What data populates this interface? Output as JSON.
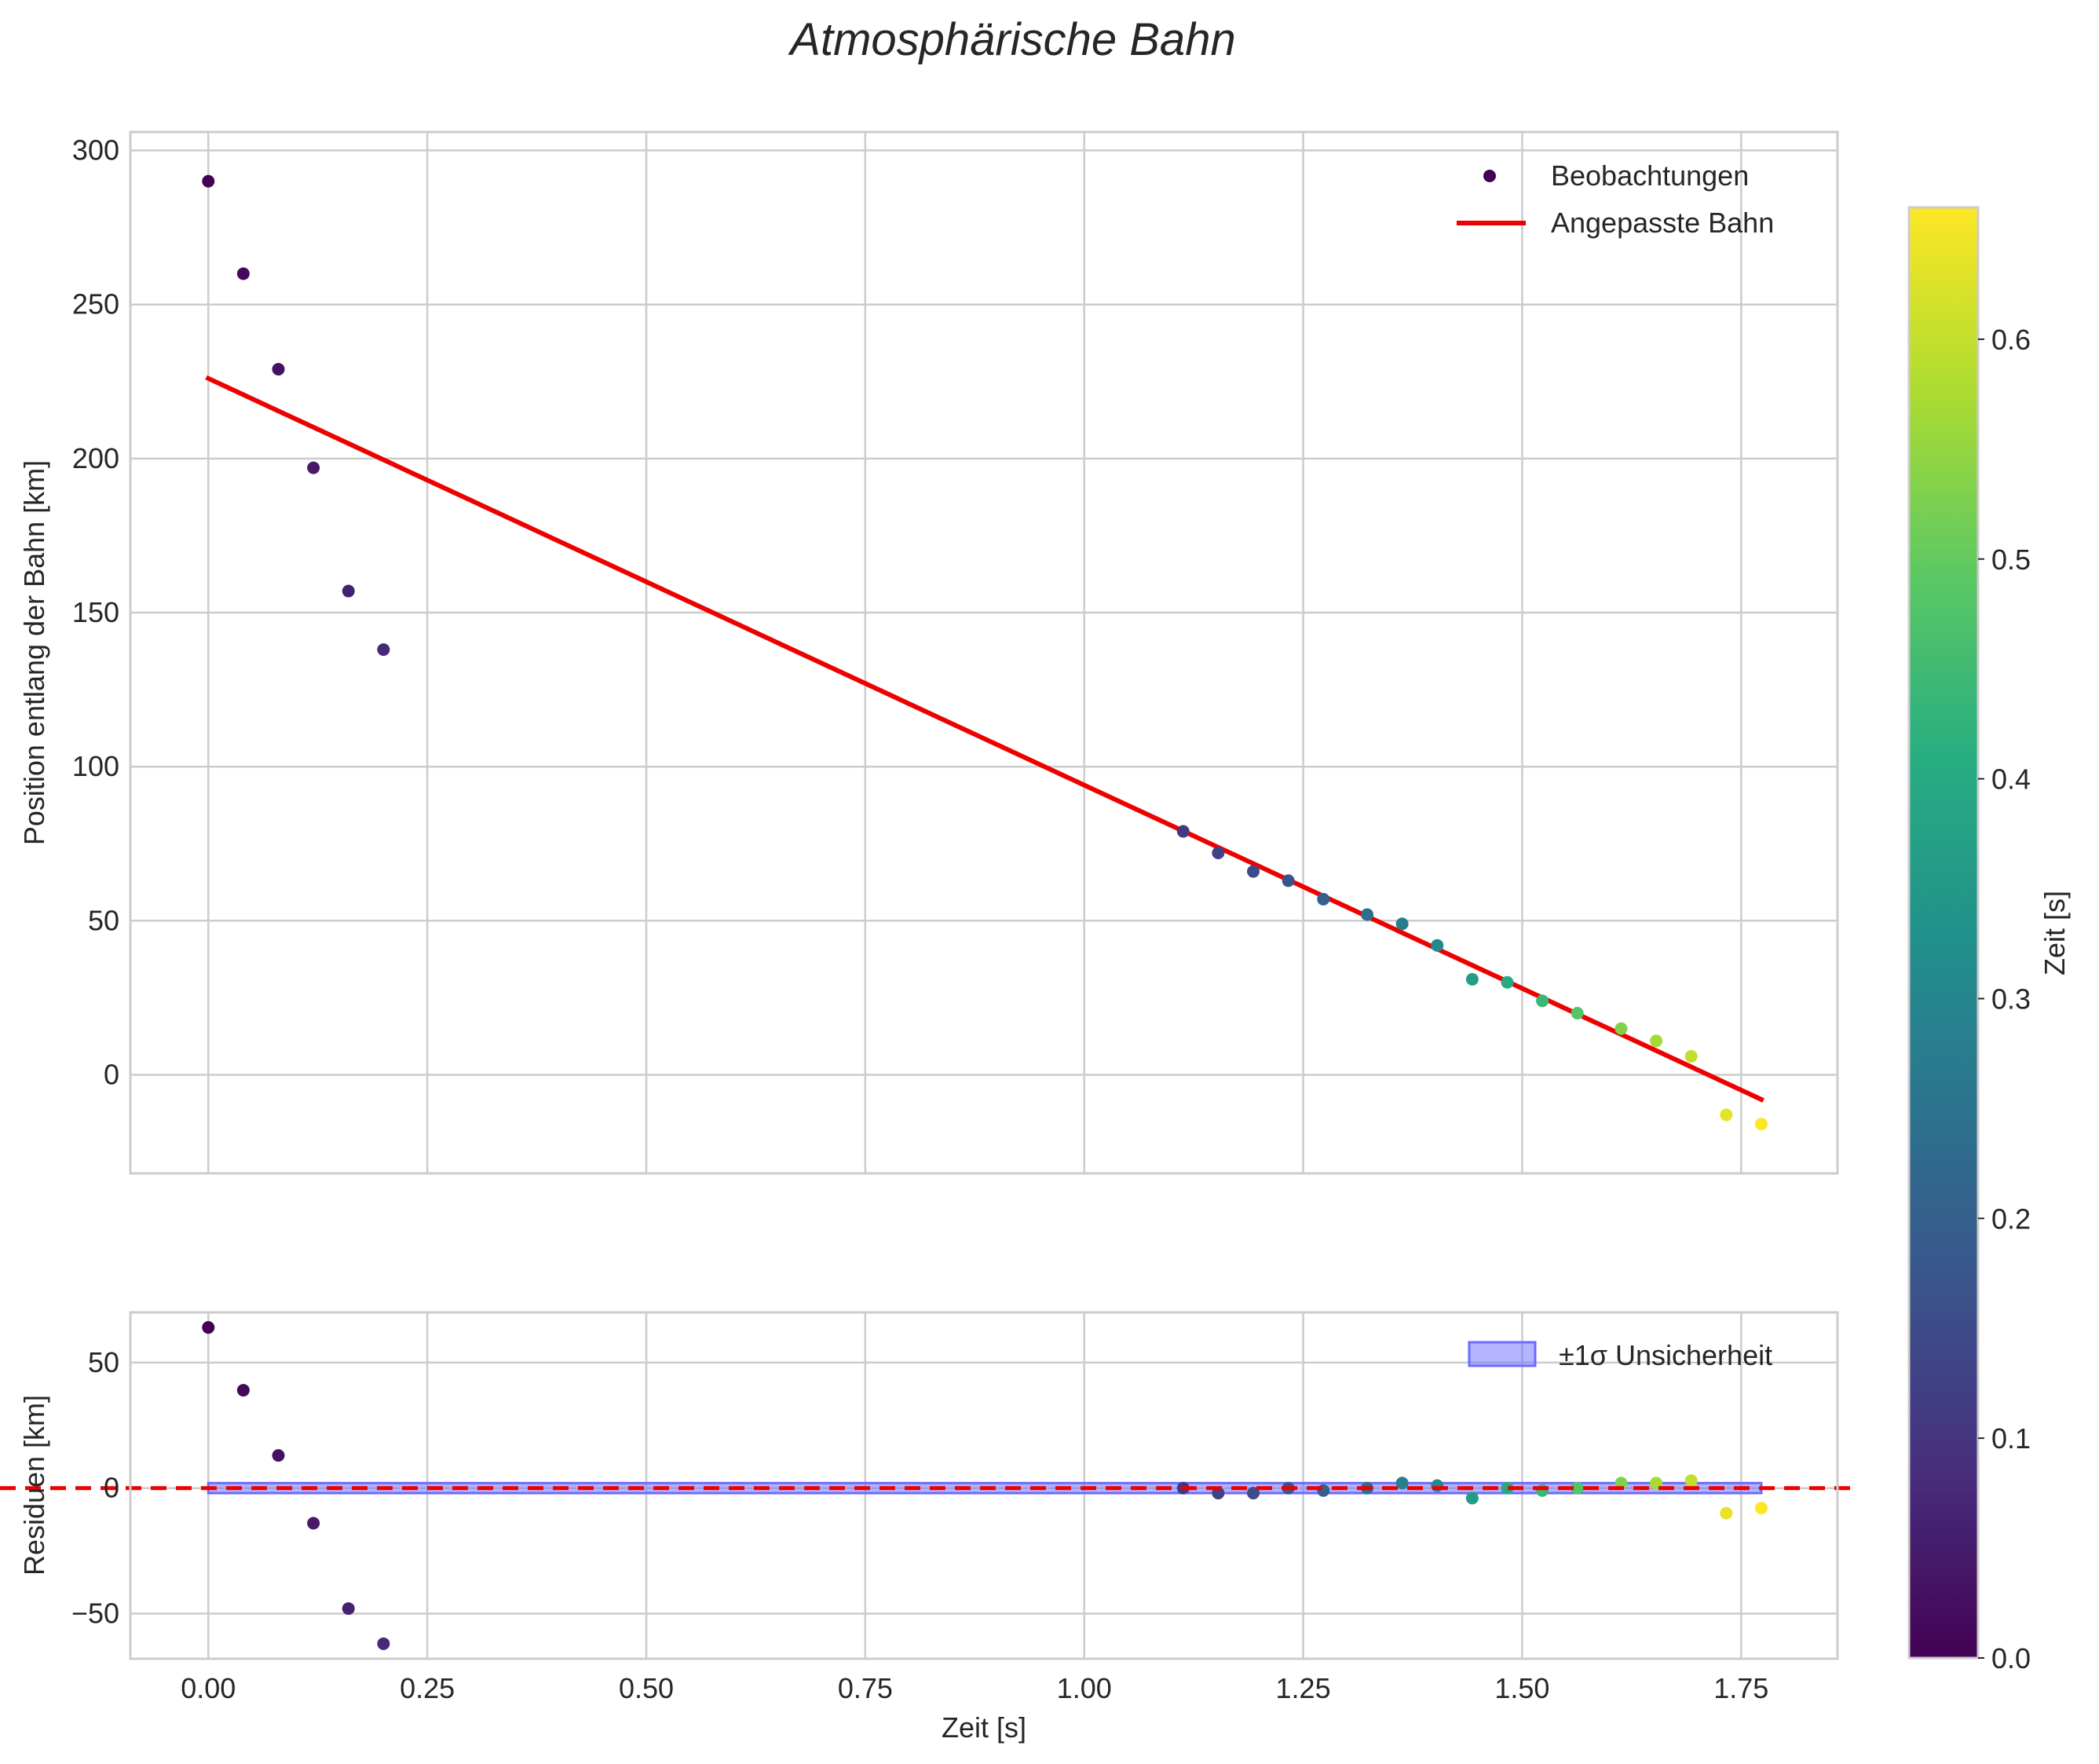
{
  "title": "Atmosphärische Bahn",
  "chart_data": [
    {
      "type": "scatter",
      "panel": "main",
      "xlabel": "",
      "ylabel": "Position entlang der Bahn [km]",
      "xlim": [
        -0.089,
        1.86
      ],
      "ylim": [
        -32,
        306
      ],
      "xticks": [
        0.0,
        0.25,
        0.5,
        0.75,
        1.0,
        1.25,
        1.5,
        1.75
      ],
      "yticks": [
        0,
        50,
        100,
        150,
        200,
        250,
        300
      ],
      "ytick_labels": [
        "0",
        "50",
        "100",
        "150",
        "200",
        "250",
        "300"
      ],
      "grid": true,
      "legend_position": "top-right",
      "series": [
        {
          "name": "Beobachtungen",
          "kind": "scatter",
          "x": [
            0.0,
            0.04,
            0.08,
            0.12,
            0.16,
            0.2,
            1.113,
            1.153,
            1.193,
            1.233,
            1.273,
            1.323,
            1.363,
            1.403,
            1.443,
            1.483,
            1.523,
            1.563,
            1.613,
            1.653,
            1.693,
            1.733,
            1.773
          ],
          "y": [
            290,
            260,
            229,
            197,
            157,
            138,
            79,
            72,
            66,
            63,
            57,
            52,
            49,
            42,
            31,
            30,
            24,
            20,
            15,
            11,
            6,
            -13,
            -16
          ],
          "color_value": [
            0.0,
            0.015,
            0.03,
            0.045,
            0.06,
            0.075,
            0.11,
            0.13,
            0.15,
            0.17,
            0.2,
            0.24,
            0.28,
            0.31,
            0.36,
            0.4,
            0.44,
            0.48,
            0.53,
            0.57,
            0.6,
            0.635,
            0.66
          ]
        },
        {
          "name": "Angepasste Bahn",
          "kind": "line",
          "color": "#ee0000",
          "x": [
            0.0,
            1.773
          ],
          "y": [
            226,
            -8
          ]
        }
      ]
    },
    {
      "type": "scatter",
      "panel": "residuals",
      "xlabel": "Zeit [s]",
      "ylabel": "Residuen [km]",
      "xlim": [
        -0.089,
        1.86
      ],
      "ylim": [
        -68,
        70
      ],
      "xticks": [
        0.0,
        0.25,
        0.5,
        0.75,
        1.0,
        1.25,
        1.5,
        1.75
      ],
      "xtick_labels": [
        "0.00",
        "0.25",
        "0.50",
        "0.75",
        "1.00",
        "1.25",
        "1.50",
        "1.75"
      ],
      "yticks": [
        -50,
        0,
        50
      ],
      "ytick_labels": [
        "−50",
        "0",
        "50"
      ],
      "grid": true,
      "legend_position": "top-right",
      "reference_line": {
        "y": 0,
        "color": "#ee0000",
        "style": "dashed"
      },
      "band": {
        "name": "±1σ Unsicherheit",
        "lower": -2,
        "upper": 2,
        "x": [
          0.0,
          1.773
        ],
        "color": "#6b6bff"
      },
      "series": [
        {
          "name": "Residuen",
          "kind": "scatter",
          "x": [
            0.0,
            0.04,
            0.08,
            0.12,
            0.16,
            0.2,
            1.113,
            1.153,
            1.193,
            1.233,
            1.273,
            1.323,
            1.363,
            1.403,
            1.443,
            1.483,
            1.523,
            1.563,
            1.613,
            1.653,
            1.693,
            1.733,
            1.773
          ],
          "y": [
            64,
            39,
            13,
            -14,
            -48,
            -62,
            0,
            -2,
            -2,
            0,
            -1,
            0,
            2,
            1,
            -4,
            0,
            -1,
            0,
            2,
            2,
            3,
            -10,
            -8
          ],
          "color_value": [
            0.0,
            0.015,
            0.03,
            0.045,
            0.06,
            0.075,
            0.11,
            0.13,
            0.15,
            0.17,
            0.2,
            0.24,
            0.28,
            0.31,
            0.36,
            0.4,
            0.44,
            0.48,
            0.53,
            0.57,
            0.6,
            0.635,
            0.66
          ]
        }
      ]
    }
  ],
  "colorbar": {
    "label": "Zeit [s]",
    "colormap": "viridis",
    "range": [
      0,
      0.66
    ],
    "ticks": [
      0.0,
      0.1,
      0.2,
      0.3,
      0.4,
      0.5,
      0.6
    ],
    "tick_labels": [
      "0.0",
      "0.1",
      "0.2",
      "0.3",
      "0.4",
      "0.5",
      "0.6"
    ]
  }
}
